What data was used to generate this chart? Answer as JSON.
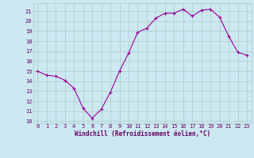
{
  "x": [
    0,
    1,
    2,
    3,
    4,
    5,
    6,
    7,
    8,
    9,
    10,
    11,
    12,
    13,
    14,
    15,
    16,
    17,
    18,
    19,
    20,
    21,
    22,
    23
  ],
  "y": [
    15.0,
    14.6,
    14.5,
    14.1,
    13.3,
    11.3,
    10.3,
    11.2,
    12.9,
    15.0,
    16.8,
    18.9,
    19.3,
    20.3,
    20.8,
    20.8,
    21.2,
    20.5,
    21.1,
    21.2,
    20.4,
    18.5,
    16.9,
    16.6
  ],
  "xlabel": "Windchill (Refroidissement éolien,°C)",
  "xlim": [
    -0.5,
    23.5
  ],
  "ylim": [
    9.8,
    21.8
  ],
  "yticks": [
    10,
    11,
    12,
    13,
    14,
    15,
    16,
    17,
    18,
    19,
    20,
    21
  ],
  "xticks": [
    0,
    1,
    2,
    3,
    4,
    5,
    6,
    7,
    8,
    9,
    10,
    11,
    12,
    13,
    14,
    15,
    16,
    17,
    18,
    19,
    20,
    21,
    22,
    23
  ],
  "line_color": "#990099",
  "marker": "+",
  "bg_color": "#cce8f0",
  "grid_color": "#aacccc",
  "tick_color": "#660066",
  "label_color": "#660066",
  "tick_fontsize": 5.0,
  "xlabel_fontsize": 5.5
}
